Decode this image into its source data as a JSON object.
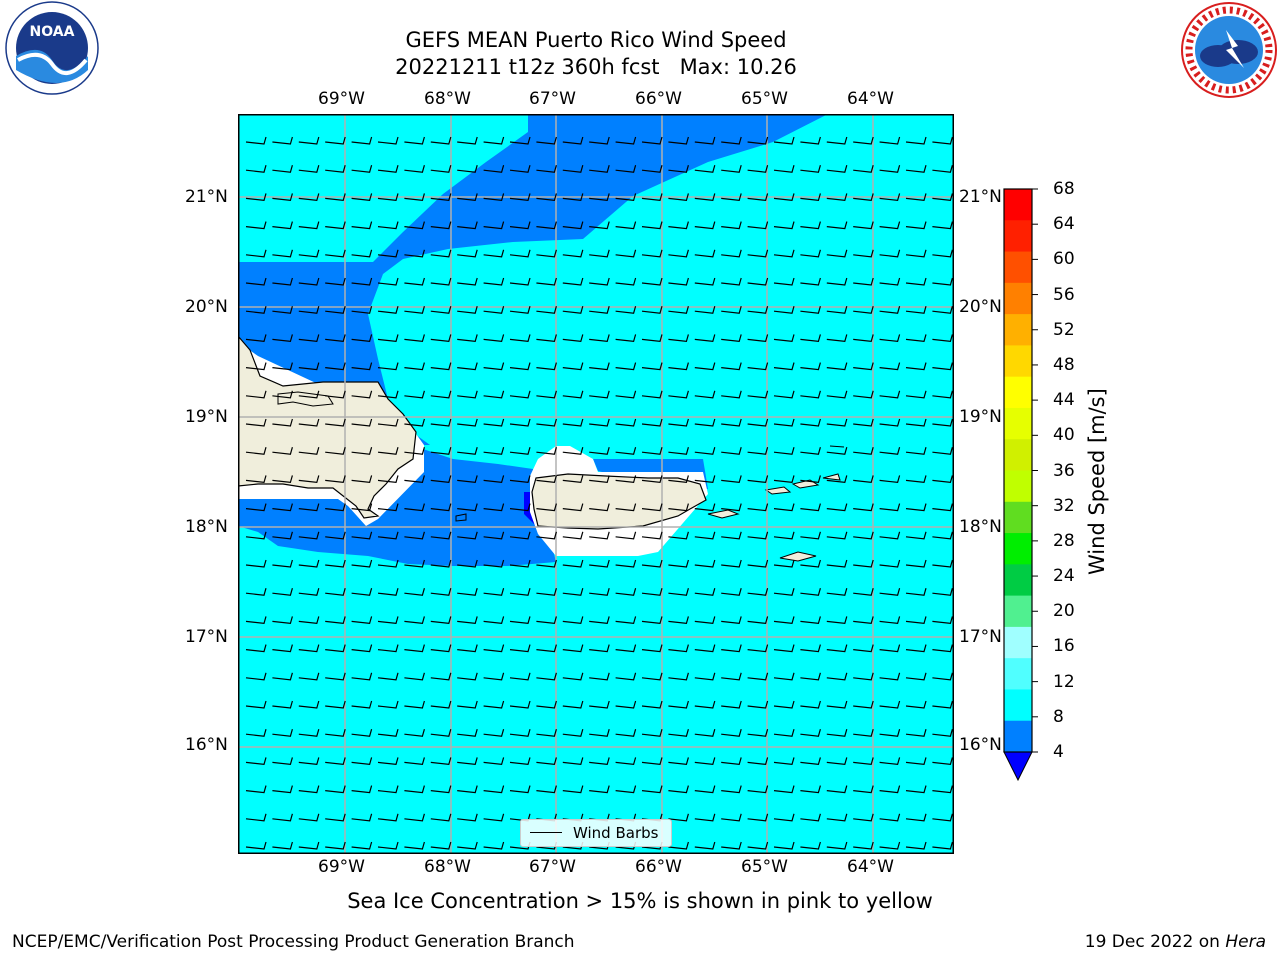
{
  "header": {
    "title_line1": "GEFS MEAN Puerto Rico Wind Speed",
    "title_line2": "20221211 t12z 360h fcst   Max: 10.26"
  },
  "logos": {
    "left": "noaa-logo",
    "right": "national-weather-service-logo",
    "noaa_text": "NOAA"
  },
  "map": {
    "lon_labels": [
      "69°W",
      "68°W",
      "67°W",
      "66°W",
      "65°W",
      "64°W"
    ],
    "lat_labels": [
      "21°N",
      "20°N",
      "19°N",
      "18°N",
      "17°N",
      "16°N"
    ],
    "colors": {
      "ocean_fill": "#00ffff",
      "low_wind_fill": "#0080ff",
      "lowest_wind_fill": "#0000ff",
      "land": "#f0eedc",
      "gridlines": "#b0b0b0"
    },
    "barb_legend": "Wind Barbs"
  },
  "colorbar": {
    "title": "Wind Speed [m/s]",
    "tick_labels": [
      "68",
      "64",
      "60",
      "56",
      "52",
      "48",
      "44",
      "40",
      "36",
      "32",
      "28",
      "24",
      "20",
      "16",
      "12",
      "8",
      "4"
    ],
    "colors_top_to_bottom": [
      "#ff0000",
      "#ff2000",
      "#ff5000",
      "#ff8000",
      "#ffb000",
      "#ffd800",
      "#ffff00",
      "#e6ff00",
      "#d0f000",
      "#c0ff00",
      "#60dd20",
      "#00ee00",
      "#00cc44",
      "#50f090",
      "#a0ffff",
      "#50ffff",
      "#00ffff",
      "#0080ff"
    ],
    "extend_color": "#0000ff"
  },
  "note": "Sea Ice Concentration > 15% is shown in pink to yellow",
  "footer": {
    "left": "NCEP/EMC/Verification Post Processing Product Generation Branch",
    "right_date": "19 Dec 2022 on ",
    "right_host": "Hera"
  }
}
